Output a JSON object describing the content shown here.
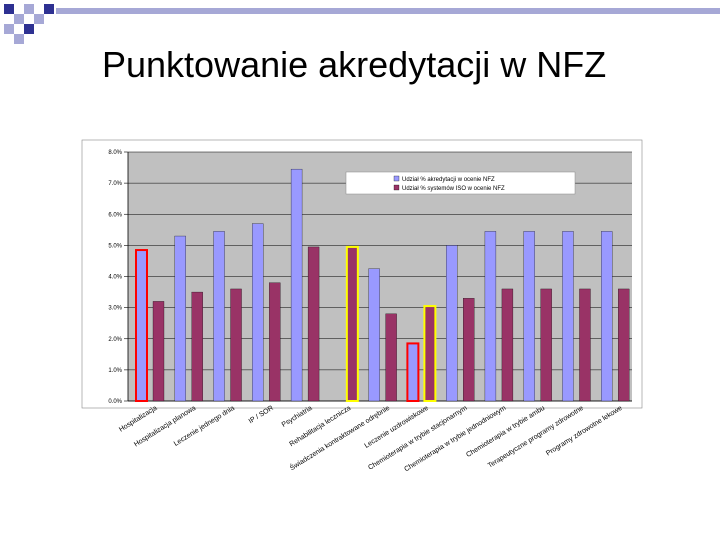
{
  "slide": {
    "title": "Punktowanie akredytacji w NFZ"
  },
  "colors": {
    "plot_background": "#c0c0c0",
    "series_1": "#9999ff",
    "series_2": "#993366",
    "highlight_red": "#ff0000",
    "highlight_yellow": "#ffff00",
    "decoration_dark": "#2e3192",
    "decoration_light": "#a6a8d6"
  },
  "chart_data": {
    "type": "bar",
    "title": "",
    "xlabel": "",
    "ylabel": "",
    "ylim": [
      0,
      8
    ],
    "y_ticks": [
      "0.0%",
      "1.0%",
      "2.0%",
      "3.0%",
      "4.0%",
      "5.0%",
      "6.0%",
      "7.0%",
      "8.0%"
    ],
    "grid": true,
    "legend_position": "top-right",
    "categories": [
      "Hospitalizacja",
      "Hospitalizacja planowa",
      "Leczenie jednego dnia",
      "IP / SOR",
      "Psychiatria",
      "Rehabilitacja lecznicza",
      "Świadczenia kontraktowane odrębnie",
      "Leczenie uzdrowiskowe",
      "Chemioterapia w trybie stacjonarnym",
      "Chemioterapia w trybie jednodniowym",
      "Chemioterapia w trybie ambu",
      "Terapeutyczne programy zdrowotne",
      "Programy zdrowotne lekowe"
    ],
    "series": [
      {
        "name": "Udział % akredytacji w ocenie NFZ",
        "values": [
          4.85,
          5.3,
          5.45,
          5.7,
          7.45,
          null,
          4.25,
          1.85,
          5.0,
          5.45,
          5.45,
          5.45,
          5.45
        ]
      },
      {
        "name": "Udział % systemów ISO w ocenie NFZ",
        "values": [
          3.2,
          3.5,
          3.6,
          3.8,
          4.95,
          4.95,
          2.8,
          3.05,
          3.3,
          3.6,
          3.6,
          3.6,
          3.6
        ]
      }
    ],
    "highlights": [
      {
        "category_index": 0,
        "series_index": 0,
        "color": "red"
      },
      {
        "category_index": 5,
        "series_index": 1,
        "color": "yellow"
      },
      {
        "category_index": 7,
        "series_index": 0,
        "color": "red"
      },
      {
        "category_index": 7,
        "series_index": 1,
        "color": "yellow"
      }
    ]
  }
}
